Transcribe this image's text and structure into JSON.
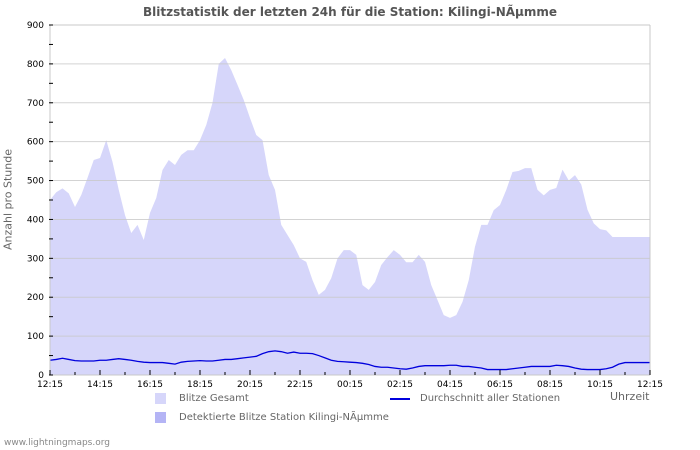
{
  "chart_data": {
    "type": "area",
    "title": "Blitzstatistik der letzten 24h für die Station: Kilingi-NÃµmme",
    "xlabel": "Uhrzeit",
    "ylabel": "Anzahl pro Stunde",
    "ylim": [
      0,
      900
    ],
    "yticks": [
      0,
      100,
      200,
      300,
      400,
      500,
      600,
      700,
      800,
      900
    ],
    "xticks": [
      "12:15",
      "14:15",
      "16:15",
      "18:15",
      "20:15",
      "22:15",
      "00:15",
      "02:15",
      "04:15",
      "06:15",
      "08:15",
      "10:15",
      "12:15"
    ],
    "x_interval_minutes": 15,
    "grid": true,
    "legend_position": "bottom",
    "series": [
      {
        "name": "Blitze Gesamt",
        "type": "area",
        "color": "#d6d6fa",
        "values": [
          450,
          470,
          480,
          467,
          432,
          463,
          507,
          553,
          558,
          604,
          548,
          476,
          411,
          365,
          386,
          347,
          417,
          455,
          527,
          553,
          540,
          566,
          578,
          578,
          604,
          643,
          700,
          800,
          815,
          784,
          746,
          707,
          661,
          617,
          604,
          514,
          476,
          386,
          360,
          334,
          300,
          291,
          244,
          206,
          219,
          249,
          300,
          321,
          321,
          309,
          231,
          219,
          239,
          283,
          303,
          321,
          309,
          290,
          290,
          309,
          291,
          231,
          193,
          154,
          147,
          154,
          188,
          244,
          330,
          386,
          386,
          424,
          437,
          476,
          522,
          525,
          532,
          532,
          476,
          462,
          476,
          481,
          528,
          500,
          514,
          490,
          425,
          390,
          375,
          372,
          355,
          355,
          355,
          355,
          355,
          355,
          355
        ]
      },
      {
        "name": "Detektierte Blitze Station Kilingi-NÃµmme",
        "type": "area",
        "color": "#b4b4f5",
        "values": []
      },
      {
        "name": "Durchschnitt aller Stationen",
        "type": "line",
        "color": "#0000dd",
        "values": [
          38,
          40,
          43,
          40,
          37,
          36,
          36,
          36,
          38,
          38,
          40,
          42,
          40,
          38,
          35,
          33,
          32,
          32,
          32,
          30,
          28,
          33,
          35,
          36,
          37,
          36,
          36,
          38,
          40,
          40,
          42,
          44,
          46,
          48,
          55,
          60,
          62,
          60,
          56,
          59,
          56,
          56,
          55,
          50,
          44,
          38,
          35,
          34,
          33,
          32,
          30,
          27,
          22,
          20,
          20,
          18,
          16,
          15,
          18,
          22,
          24,
          24,
          24,
          24,
          25,
          25,
          22,
          22,
          20,
          18,
          14,
          14,
          14,
          14,
          16,
          18,
          20,
          22,
          22,
          22,
          22,
          25,
          24,
          22,
          18,
          15,
          14,
          14,
          14,
          16,
          20,
          28,
          32,
          32,
          32,
          32,
          32
        ]
      }
    ]
  },
  "legend": {
    "total": "Blitze Gesamt",
    "detected": "Detektierte Blitze Station Kilingi-NÃµmme",
    "average": "Durchschnitt aller Stationen"
  },
  "footer": "www.lightningmaps.org"
}
